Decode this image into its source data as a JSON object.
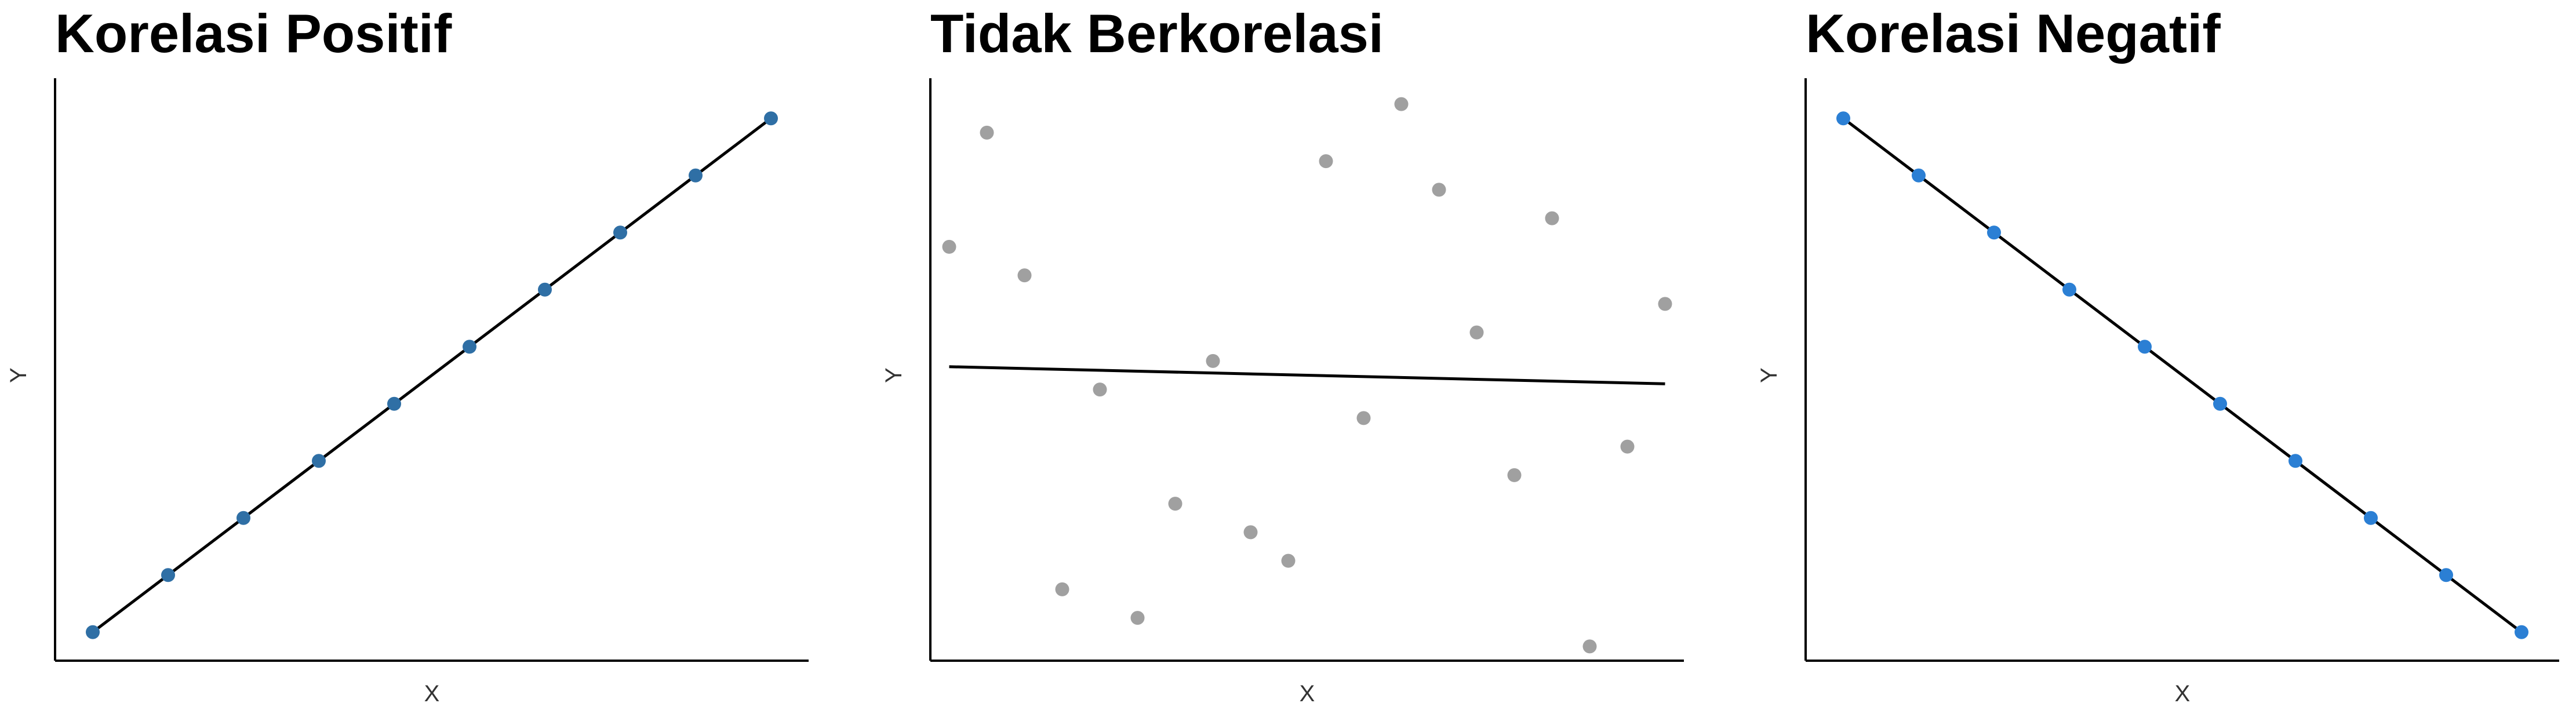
{
  "chart_data": [
    {
      "type": "scatter",
      "title": "Korelasi Positif",
      "xlabel": "X",
      "ylabel": "Y",
      "grid": false,
      "xlim": [
        0.5,
        10.5
      ],
      "ylim": [
        0.5,
        10.5
      ],
      "point_color": "#2f6fa5",
      "line_color": "#000000",
      "points": [
        {
          "x": 1,
          "y": 1
        },
        {
          "x": 2,
          "y": 2
        },
        {
          "x": 3,
          "y": 3
        },
        {
          "x": 4,
          "y": 4
        },
        {
          "x": 5,
          "y": 5
        },
        {
          "x": 6,
          "y": 6
        },
        {
          "x": 7,
          "y": 7
        },
        {
          "x": 8,
          "y": 8
        },
        {
          "x": 9,
          "y": 9
        },
        {
          "x": 10,
          "y": 10
        }
      ],
      "trend_line": {
        "x": [
          1,
          10
        ],
        "y": [
          1,
          10
        ]
      }
    },
    {
      "type": "scatter",
      "title": "Tidak Berkorelasi",
      "xlabel": "X",
      "ylabel": "Y",
      "grid": false,
      "xlim": [
        0.5,
        20.5
      ],
      "ylim": [
        0.5,
        20.5
      ],
      "point_color": "#a0a0a0",
      "line_color": "#000000",
      "points": [
        {
          "x": 1,
          "y": 15
        },
        {
          "x": 2,
          "y": 19
        },
        {
          "x": 3,
          "y": 14
        },
        {
          "x": 4,
          "y": 3
        },
        {
          "x": 5,
          "y": 10
        },
        {
          "x": 6,
          "y": 2
        },
        {
          "x": 7,
          "y": 6
        },
        {
          "x": 8,
          "y": 11
        },
        {
          "x": 9,
          "y": 5
        },
        {
          "x": 10,
          "y": 4
        },
        {
          "x": 11,
          "y": 18
        },
        {
          "x": 12,
          "y": 9
        },
        {
          "x": 13,
          "y": 20
        },
        {
          "x": 14,
          "y": 17
        },
        {
          "x": 15,
          "y": 12
        },
        {
          "x": 16,
          "y": 7
        },
        {
          "x": 17,
          "y": 16
        },
        {
          "x": 18,
          "y": 1
        },
        {
          "x": 19,
          "y": 8
        },
        {
          "x": 20,
          "y": 13
        }
      ],
      "trend_line": {
        "x": [
          1,
          20
        ],
        "y": [
          10.8,
          10.2
        ]
      }
    },
    {
      "type": "scatter",
      "title": "Korelasi Negatif",
      "xlabel": "X",
      "ylabel": "Y",
      "grid": false,
      "xlim": [
        0.5,
        10.5
      ],
      "ylim": [
        0.5,
        10.5
      ],
      "point_color": "#2b7fd4",
      "line_color": "#000000",
      "points": [
        {
          "x": 1,
          "y": 10
        },
        {
          "x": 2,
          "y": 9
        },
        {
          "x": 3,
          "y": 8
        },
        {
          "x": 4,
          "y": 7
        },
        {
          "x": 5,
          "y": 6
        },
        {
          "x": 6,
          "y": 5
        },
        {
          "x": 7,
          "y": 4
        },
        {
          "x": 8,
          "y": 3
        },
        {
          "x": 9,
          "y": 2
        },
        {
          "x": 10,
          "y": 1
        }
      ],
      "trend_line": {
        "x": [
          1,
          10
        ],
        "y": [
          10,
          1
        ]
      }
    }
  ]
}
